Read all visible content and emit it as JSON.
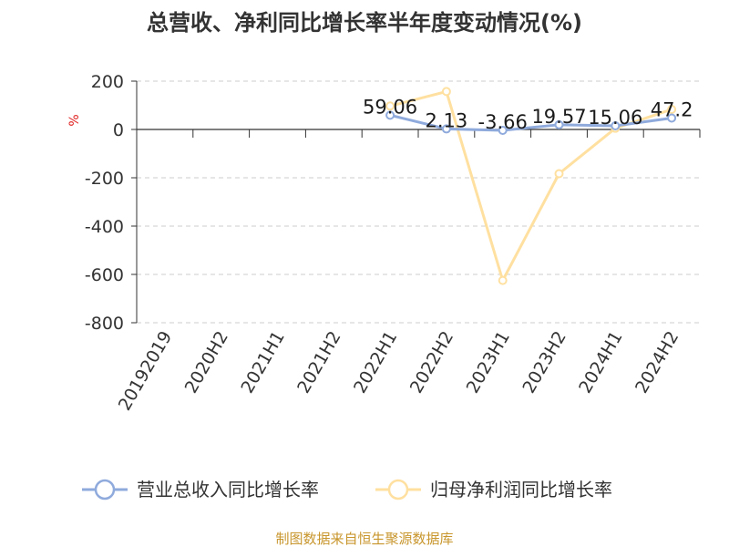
{
  "chart_data": {
    "type": "line",
    "title": "总营收、净利同比增长率半年度变动情况(%)",
    "ylabel": "%",
    "ylim": [
      -800,
      200
    ],
    "yticks": [
      200,
      0,
      -200,
      -400,
      -600,
      -800
    ],
    "categories": [
      "20192019",
      "2020H2",
      "2021H1",
      "2021H2",
      "2022H1",
      "2022H2",
      "2023H1",
      "2023H2",
      "2024H1",
      "2024H2"
    ],
    "series": [
      {
        "name": "营业总收入同比增长率",
        "color": "#8faadc",
        "values": [
          null,
          null,
          null,
          null,
          59.06,
          2.13,
          -3.66,
          19.57,
          15.06,
          47.2
        ],
        "labels": [
          "",
          "",
          "",
          "",
          "59.06",
          "2.13",
          "-3.66",
          "19.57",
          "15.06",
          "47.2"
        ]
      },
      {
        "name": "归母净利润同比增长率",
        "color": "#ffe0a0",
        "values": [
          null,
          null,
          null,
          null,
          97,
          157,
          -625,
          -183,
          5,
          83
        ],
        "labels": []
      }
    ],
    "grid": true,
    "legend": "bottom",
    "source": "制图数据来自恒生聚源数据库"
  }
}
